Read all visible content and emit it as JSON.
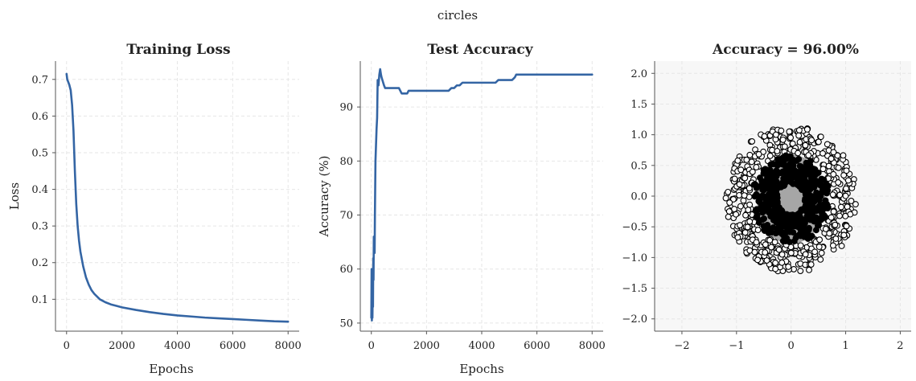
{
  "figure": {
    "suptitle": "circles"
  },
  "chart_data": [
    {
      "type": "line",
      "title": "Training Loss",
      "xlabel": "Epochs",
      "ylabel": "Loss",
      "xlim": [
        -400,
        8400
      ],
      "ylim": [
        0.013,
        0.75
      ],
      "xticks": [
        0,
        2000,
        4000,
        6000,
        8000
      ],
      "yticks": [
        0.1,
        0.2,
        0.3,
        0.4,
        0.5,
        0.6,
        0.7
      ],
      "grid": true,
      "color": "#3465a4",
      "series": [
        {
          "x": [
            0,
            25,
            50,
            100,
            150,
            200,
            250,
            300,
            350,
            400,
            450,
            500,
            600,
            700,
            800,
            900,
            1000,
            1200,
            1400,
            1600,
            1800,
            2000,
            2500,
            3000,
            3500,
            4000,
            4500,
            5000,
            5500,
            6000,
            6500,
            7000,
            7500,
            8000
          ],
          "y": [
            0.715,
            0.7,
            0.695,
            0.685,
            0.67,
            0.63,
            0.56,
            0.45,
            0.36,
            0.3,
            0.26,
            0.23,
            0.19,
            0.16,
            0.14,
            0.125,
            0.115,
            0.1,
            0.092,
            0.086,
            0.082,
            0.078,
            0.071,
            0.065,
            0.06,
            0.056,
            0.053,
            0.05,
            0.048,
            0.046,
            0.044,
            0.042,
            0.04,
            0.039
          ]
        }
      ]
    },
    {
      "type": "line",
      "title": "Test Accuracy",
      "xlabel": "Epochs",
      "ylabel": "Accuracy (%)",
      "xlim": [
        -400,
        8400
      ],
      "ylim": [
        48.5,
        98.5
      ],
      "xticks": [
        0,
        2000,
        4000,
        6000,
        8000
      ],
      "yticks": [
        50,
        60,
        70,
        80,
        90
      ],
      "grid": true,
      "color": "#3465a4",
      "series": [
        {
          "x": [
            0,
            10,
            20,
            30,
            40,
            50,
            60,
            70,
            80,
            90,
            100,
            110,
            120,
            130,
            150,
            170,
            190,
            210,
            230,
            260,
            290,
            320,
            350,
            370,
            400,
            430,
            460,
            500,
            560,
            600,
            620,
            1000,
            1050,
            1100,
            1300,
            1350,
            2800,
            2900,
            3000,
            3100,
            3200,
            3300,
            4500,
            4600,
            4700,
            5100,
            5200,
            5250,
            8000
          ],
          "y": [
            51,
            60,
            50.5,
            58,
            51,
            55,
            53,
            62,
            58,
            66,
            63,
            66,
            63,
            70,
            80,
            83,
            86,
            88,
            95,
            94,
            96,
            97,
            96,
            95.5,
            95,
            94.5,
            94,
            93.5,
            93.5,
            93.5,
            93.5,
            93.5,
            93,
            92.5,
            92.5,
            93,
            93,
            93.5,
            93.5,
            94,
            94,
            94.5,
            94.5,
            95,
            95,
            95,
            95.5,
            96,
            96
          ]
        }
      ]
    },
    {
      "type": "scatter",
      "title": "Accuracy = 96.00%",
      "xlabel": "",
      "ylabel": "",
      "xlim": [
        -2.5,
        2.2
      ],
      "ylim": [
        -2.2,
        2.2
      ],
      "xticks": [
        -2,
        -1,
        0,
        1,
        2
      ],
      "xtick_labels": [
        "−2",
        "−1",
        "0",
        "1",
        "2"
      ],
      "yticks": [
        2.0,
        1.5,
        1.0,
        0.5,
        0.0,
        -0.5,
        -1.0,
        -1.5,
        -2.0
      ],
      "ytick_labels": [
        "2.0",
        "1.5",
        "1.0",
        "0.5",
        "0.0",
        "−0.5",
        "−1.0",
        "−1.5",
        "−2.0"
      ],
      "grid": true,
      "background_color": "#f7f7f7",
      "decision_region": {
        "center": [
          0.0,
          -0.05
        ],
        "radius_x": 0.62,
        "radius_y": 0.72,
        "color": "#a6a6a6"
      },
      "classes": [
        {
          "label": "0",
          "marker": "open",
          "fill": "#ffffff",
          "edge": "#000000",
          "count": 500,
          "radius_range": [
            0.75,
            1.2
          ],
          "center": [
            0.0,
            -0.05
          ]
        },
        {
          "label": "1",
          "marker": "filled",
          "fill": "#000000",
          "edge": "#000000",
          "count": 500,
          "radius_range": [
            0.25,
            0.72
          ],
          "center": [
            0.0,
            -0.05
          ]
        }
      ]
    }
  ]
}
